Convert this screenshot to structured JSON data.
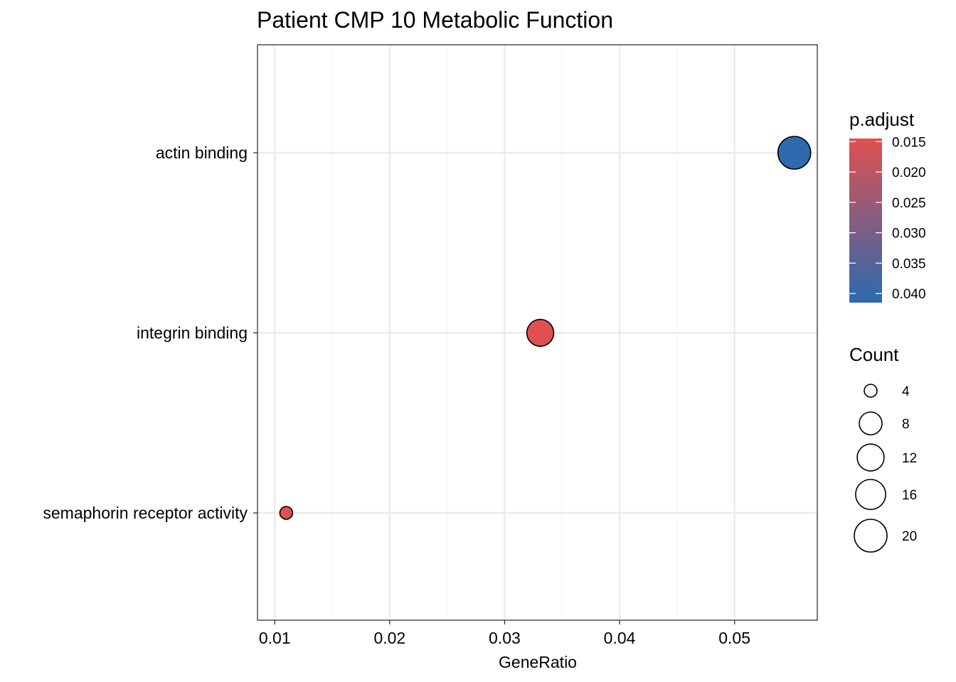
{
  "chart_data": {
    "type": "scatter",
    "title": "Patient CMP 10 Metabolic Function",
    "xlabel": "GeneRatio",
    "ylabel": "",
    "xlim": [
      0.0085,
      0.0572
    ],
    "x_ticks": [
      0.01,
      0.02,
      0.03,
      0.04,
      0.05
    ],
    "x_tick_labels": [
      "0.01",
      "0.02",
      "0.03",
      "0.04",
      "0.05"
    ],
    "grid": true,
    "categories": [
      "actin binding",
      "integrin binding",
      "semaphorin receptor activity"
    ],
    "points": [
      {
        "category": "actin binding",
        "x": 0.0552,
        "count": 20,
        "p_adjust": 0.041
      },
      {
        "category": "integrin binding",
        "x": 0.0331,
        "count": 12,
        "p_adjust": 0.0145
      },
      {
        "category": "semaphorin receptor activity",
        "x": 0.011,
        "count": 4,
        "p_adjust": 0.0145
      }
    ],
    "color_legend": {
      "title": "p.adjust",
      "range": [
        0.0145,
        0.0415
      ],
      "ticks": [
        0.015,
        0.02,
        0.025,
        0.03,
        0.035,
        0.04
      ],
      "tick_labels": [
        "0.015",
        "0.020",
        "0.025",
        "0.030",
        "0.035",
        "0.040"
      ],
      "low_color": "#E05050",
      "high_color": "#2B6AAF",
      "placement": "right"
    },
    "size_legend": {
      "title": "Count",
      "values": [
        4,
        8,
        12,
        16,
        20
      ],
      "labels": [
        "4",
        "8",
        "12",
        "16",
        "20"
      ],
      "placement": "right"
    },
    "colors": {
      "panel_border": "#333333",
      "grid_major": "#EBEBEB",
      "grid_minor": "#F4F4F4",
      "point_outline": "#000000"
    }
  }
}
